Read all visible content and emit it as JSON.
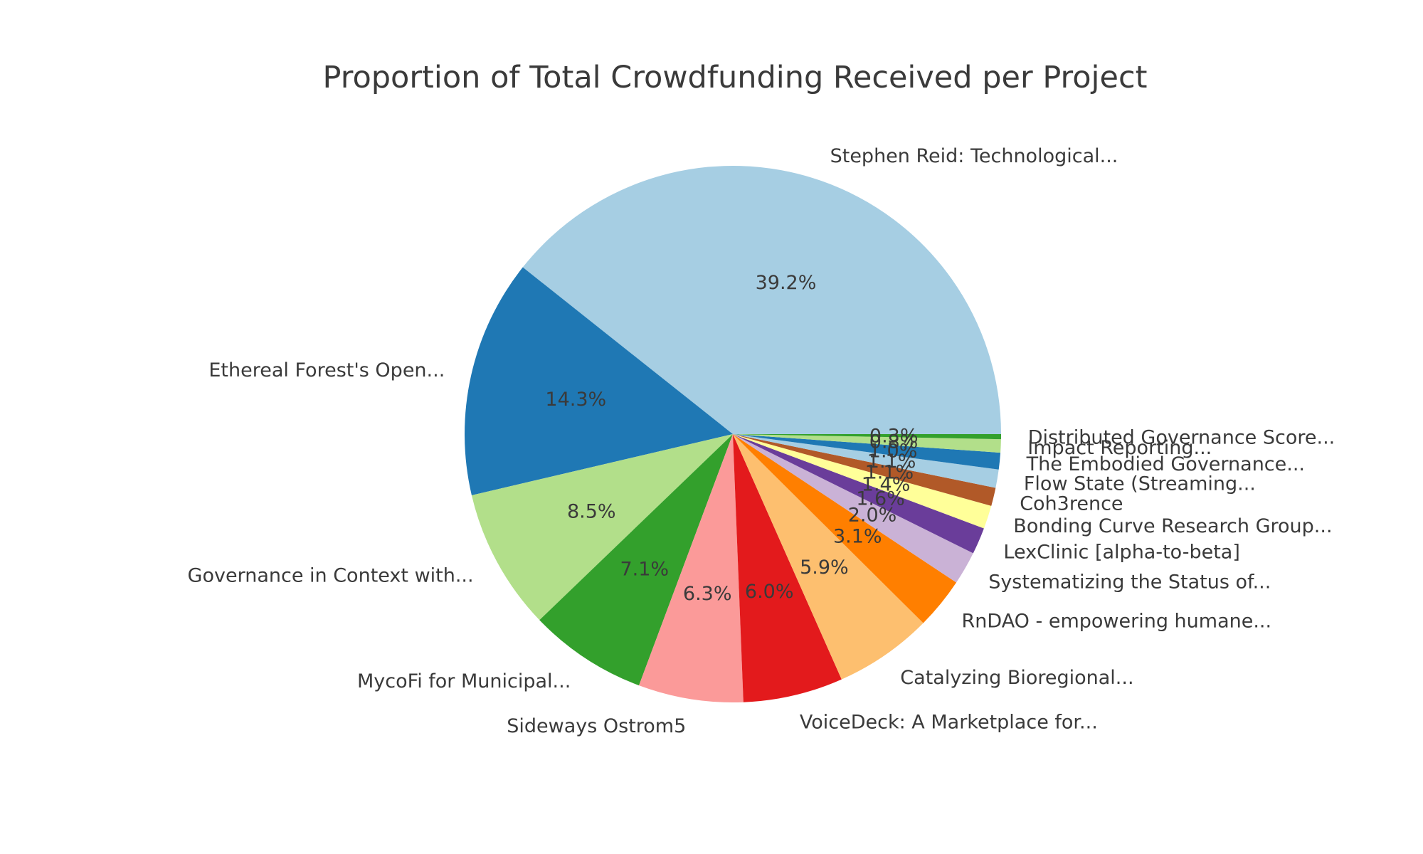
{
  "chart_data": {
    "type": "pie",
    "title": "Proportion of Total Crowdfunding Received per Project",
    "direction": "counterclockwise",
    "start_angle_deg": 0,
    "pct_distance": 0.6,
    "label_distance": 1.1,
    "legend": "none",
    "text_color": "#3a3a3a",
    "background_color": "#ffffff",
    "slices": [
      {
        "label": "Stephen Reid: Technological...",
        "value": 39.2,
        "pct_label": "39.2%",
        "color": "#a6cee3"
      },
      {
        "label": "Ethereal Forest's Open...",
        "value": 14.3,
        "pct_label": "14.3%",
        "color": "#1f78b4"
      },
      {
        "label": "Governance in Context with...",
        "value": 8.5,
        "pct_label": "8.5%",
        "color": "#b2df8a"
      },
      {
        "label": "MycoFi for Municipal...",
        "value": 7.1,
        "pct_label": "7.1%",
        "color": "#33a02c"
      },
      {
        "label": "Sideways Ostrom5",
        "value": 6.3,
        "pct_label": "6.3%",
        "color": "#fb9a99"
      },
      {
        "label": "VoiceDeck: A Marketplace for...",
        "value": 6.0,
        "pct_label": "6.0%",
        "color": "#e31a1c"
      },
      {
        "label": "Catalyzing Bioregional...",
        "value": 5.9,
        "pct_label": "5.9%",
        "color": "#fdbf6f"
      },
      {
        "label": "RnDAO - empowering humane...",
        "value": 3.1,
        "pct_label": "3.1%",
        "color": "#ff7f00"
      },
      {
        "label": "Systematizing the Status of...",
        "value": 2.0,
        "pct_label": "2.0%",
        "color": "#cab2d6"
      },
      {
        "label": "LexClinic [alpha-to-beta]",
        "value": 1.6,
        "pct_label": "1.6%",
        "color": "#6a3d9a"
      },
      {
        "label": "Bonding Curve Research Group...",
        "value": 1.4,
        "pct_label": "1.4%",
        "color": "#ffff99"
      },
      {
        "label": "Coh3rence",
        "value": 1.1,
        "pct_label": "1.1%",
        "color": "#b15928"
      },
      {
        "label": "Flow State (Streaming...",
        "value": 1.1,
        "pct_label": "1.1%",
        "color": "#a6cee3"
      },
      {
        "label": "The Embodied Governance...",
        "value": 1.0,
        "pct_label": "1.0%",
        "color": "#1f78b4"
      },
      {
        "label": "Impact Reporting...",
        "value": 0.8,
        "pct_label": "0.8%",
        "color": "#b2df8a"
      },
      {
        "label": "Distributed Governance Score...",
        "value": 0.3,
        "pct_label": "0.3%",
        "color": "#33a02c"
      }
    ]
  }
}
